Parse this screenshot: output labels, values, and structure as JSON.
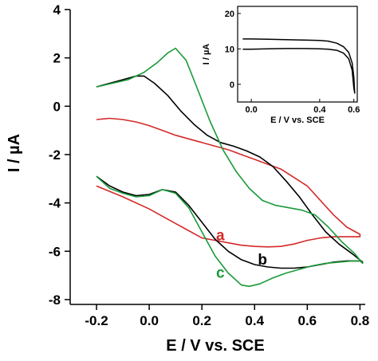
{
  "chart_data": [
    {
      "type": "line",
      "xlabel": "E / V vs. SCE",
      "ylabel": "I / µA",
      "xlim": [
        -0.3,
        0.82
      ],
      "ylim": [
        -8.2,
        4
      ],
      "xticks": [
        -0.2,
        0.0,
        0.2,
        0.4,
        0.6,
        0.8
      ],
      "xtick_labels": [
        "-0.2",
        "0.0",
        "0.2",
        "0.4",
        "0.6",
        "0.8"
      ],
      "yticks": [
        -8,
        -6,
        -4,
        -2,
        0,
        2,
        4
      ],
      "ytick_labels": [
        "-8",
        "-6",
        "-4",
        "-2",
        "0",
        "2",
        "4"
      ],
      "grid": false,
      "series": [
        {
          "name": "a",
          "color": "#d42a2a",
          "points": [
            [
              -0.2,
              -3.3
            ],
            [
              -0.1,
              -3.75
            ],
            [
              0.0,
              -4.25
            ],
            [
              0.05,
              -4.55
            ],
            [
              0.1,
              -4.85
            ],
            [
              0.15,
              -5.15
            ],
            [
              0.2,
              -5.45
            ],
            [
              0.25,
              -5.55
            ],
            [
              0.3,
              -5.65
            ],
            [
              0.35,
              -5.75
            ],
            [
              0.4,
              -5.8
            ],
            [
              0.45,
              -5.82
            ],
            [
              0.5,
              -5.8
            ],
            [
              0.55,
              -5.7
            ],
            [
              0.6,
              -5.55
            ],
            [
              0.65,
              -5.45
            ],
            [
              0.7,
              -5.4
            ],
            [
              0.75,
              -5.4
            ],
            [
              0.8,
              -5.4
            ],
            [
              0.8,
              -5.3
            ],
            [
              0.75,
              -5.0
            ],
            [
              0.7,
              -4.5
            ],
            [
              0.65,
              -3.9
            ],
            [
              0.6,
              -3.3
            ],
            [
              0.55,
              -2.95
            ],
            [
              0.5,
              -2.6
            ],
            [
              0.45,
              -2.4
            ],
            [
              0.4,
              -2.2
            ],
            [
              0.35,
              -2.0
            ],
            [
              0.3,
              -1.8
            ],
            [
              0.25,
              -1.65
            ],
            [
              0.2,
              -1.5
            ],
            [
              0.15,
              -1.35
            ],
            [
              0.1,
              -1.2
            ],
            [
              0.05,
              -1.0
            ],
            [
              0.0,
              -0.8
            ],
            [
              -0.05,
              -0.65
            ],
            [
              -0.1,
              -0.55
            ],
            [
              -0.15,
              -0.5
            ],
            [
              -0.2,
              -0.55
            ]
          ]
        },
        {
          "name": "b",
          "color": "#000000",
          "points": [
            [
              -0.2,
              -2.9
            ],
            [
              -0.15,
              -3.3
            ],
            [
              -0.1,
              -3.55
            ],
            [
              -0.05,
              -3.7
            ],
            [
              0.0,
              -3.65
            ],
            [
              0.05,
              -3.45
            ],
            [
              0.1,
              -3.55
            ],
            [
              0.15,
              -4.1
            ],
            [
              0.2,
              -4.8
            ],
            [
              0.25,
              -5.5
            ],
            [
              0.3,
              -6.0
            ],
            [
              0.35,
              -6.35
            ],
            [
              0.4,
              -6.55
            ],
            [
              0.45,
              -6.65
            ],
            [
              0.5,
              -6.7
            ],
            [
              0.55,
              -6.7
            ],
            [
              0.6,
              -6.65
            ],
            [
              0.65,
              -6.55
            ],
            [
              0.7,
              -6.45
            ],
            [
              0.75,
              -6.4
            ],
            [
              0.8,
              -6.4
            ],
            [
              0.81,
              -6.45
            ],
            [
              0.77,
              -6.1
            ],
            [
              0.72,
              -5.7
            ],
            [
              0.67,
              -5.2
            ],
            [
              0.62,
              -4.5
            ],
            [
              0.57,
              -3.75
            ],
            [
              0.52,
              -3.1
            ],
            [
              0.47,
              -2.5
            ],
            [
              0.42,
              -2.1
            ],
            [
              0.37,
              -1.85
            ],
            [
              0.32,
              -1.65
            ],
            [
              0.27,
              -1.5
            ],
            [
              0.22,
              -1.2
            ],
            [
              0.17,
              -0.75
            ],
            [
              0.12,
              -0.2
            ],
            [
              0.07,
              0.45
            ],
            [
              0.02,
              0.95
            ],
            [
              -0.02,
              1.25
            ],
            [
              -0.05,
              1.25
            ],
            [
              -0.1,
              1.1
            ],
            [
              -0.15,
              0.95
            ],
            [
              -0.2,
              0.8
            ]
          ]
        },
        {
          "name": "c",
          "color": "#1a9a3a",
          "points": [
            [
              -0.2,
              -2.9
            ],
            [
              -0.15,
              -3.4
            ],
            [
              -0.1,
              -3.6
            ],
            [
              -0.05,
              -3.75
            ],
            [
              0.0,
              -3.7
            ],
            [
              0.05,
              -3.45
            ],
            [
              0.1,
              -3.6
            ],
            [
              0.15,
              -4.2
            ],
            [
              0.2,
              -5.2
            ],
            [
              0.25,
              -6.2
            ],
            [
              0.3,
              -6.9
            ],
            [
              0.35,
              -7.4
            ],
            [
              0.38,
              -7.45
            ],
            [
              0.42,
              -7.35
            ],
            [
              0.47,
              -7.1
            ],
            [
              0.52,
              -6.9
            ],
            [
              0.57,
              -6.75
            ],
            [
              0.62,
              -6.6
            ],
            [
              0.67,
              -6.5
            ],
            [
              0.72,
              -6.45
            ],
            [
              0.77,
              -6.4
            ],
            [
              0.8,
              -6.4
            ],
            [
              0.81,
              -6.5
            ],
            [
              0.78,
              -6.1
            ],
            [
              0.73,
              -5.6
            ],
            [
              0.68,
              -5.0
            ],
            [
              0.63,
              -4.5
            ],
            [
              0.58,
              -4.3
            ],
            [
              0.53,
              -4.2
            ],
            [
              0.48,
              -4.1
            ],
            [
              0.43,
              -3.9
            ],
            [
              0.38,
              -3.4
            ],
            [
              0.33,
              -2.7
            ],
            [
              0.28,
              -1.8
            ],
            [
              0.23,
              -0.6
            ],
            [
              0.18,
              0.8
            ],
            [
              0.14,
              1.9
            ],
            [
              0.1,
              2.4
            ],
            [
              0.07,
              2.2
            ],
            [
              0.03,
              1.8
            ],
            [
              -0.02,
              1.4
            ],
            [
              -0.08,
              1.1
            ],
            [
              -0.14,
              0.95
            ],
            [
              -0.2,
              0.8
            ]
          ]
        }
      ],
      "annotations": [
        {
          "text": "a",
          "x": 0.27,
          "y": -5.55,
          "color": "#d42a2a"
        },
        {
          "text": "b",
          "x": 0.43,
          "y": -6.55,
          "color": "#000000"
        },
        {
          "text": "c",
          "x": 0.27,
          "y": -7.1,
          "color": "#1a9a3a"
        }
      ]
    },
    {
      "type": "line",
      "role": "inset",
      "xlabel": "E / V vs. SCE",
      "ylabel": "I / µA",
      "xlim": [
        -0.08,
        0.62
      ],
      "ylim": [
        -5,
        22
      ],
      "xticks": [
        0.0,
        0.4,
        0.6
      ],
      "xtick_labels": [
        "0.0",
        "0.4",
        "0.6"
      ],
      "yticks": [
        0,
        10,
        20
      ],
      "ytick_labels": [
        "0",
        "10",
        "20"
      ],
      "series": [
        {
          "color": "#000000",
          "points": [
            [
              -0.05,
              12.8
            ],
            [
              0.0,
              12.8
            ],
            [
              0.1,
              12.7
            ],
            [
              0.2,
              12.6
            ],
            [
              0.3,
              12.5
            ],
            [
              0.4,
              12.4
            ],
            [
              0.45,
              12.2
            ],
            [
              0.5,
              11.6
            ],
            [
              0.54,
              10.6
            ],
            [
              0.57,
              9.0
            ],
            [
              0.59,
              6.0
            ],
            [
              0.6,
              2.0
            ],
            [
              0.605,
              -2.5
            ],
            [
              0.6,
              -1.0
            ],
            [
              0.59,
              4.0
            ],
            [
              0.57,
              7.2
            ],
            [
              0.54,
              8.8
            ],
            [
              0.5,
              9.6
            ],
            [
              0.45,
              9.9
            ],
            [
              0.4,
              10.0
            ],
            [
              0.3,
              10.1
            ],
            [
              0.2,
              10.1
            ],
            [
              0.1,
              10.0
            ],
            [
              0.0,
              9.9
            ],
            [
              -0.05,
              9.9
            ]
          ]
        }
      ]
    }
  ]
}
